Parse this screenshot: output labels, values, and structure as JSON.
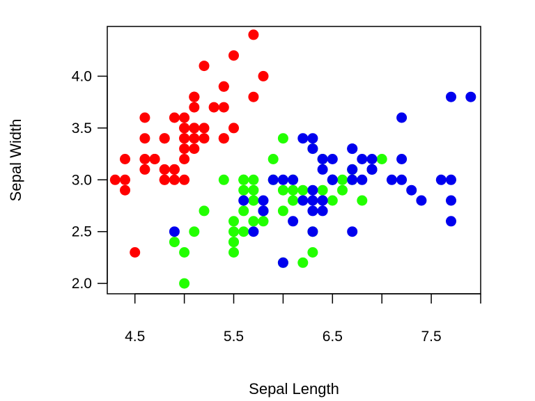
{
  "chart_data": {
    "type": "scatter",
    "title": "",
    "xlabel": "Sepal Length",
    "ylabel": "Sepal Width",
    "xlim": [
      4.22,
      8.0
    ],
    "ylim": [
      1.9,
      4.48
    ],
    "x_ticks": [
      4.5,
      5.5,
      6.5,
      7.5
    ],
    "x_tick_labels": [
      "4.5",
      "5.5",
      "6.5",
      "7.5"
    ],
    "x_minor_ticks": [
      5.0,
      6.0,
      7.0,
      8.0
    ],
    "y_ticks": [
      2.0,
      2.5,
      3.0,
      3.5,
      4.0
    ],
    "y_tick_labels": [
      "2.0",
      "2.5",
      "3.0",
      "3.5",
      "4.0"
    ],
    "grid": false,
    "legend": "none",
    "series": [
      {
        "color": "#ff0000",
        "points": [
          [
            5.1,
            3.5
          ],
          [
            4.9,
            3.0
          ],
          [
            4.7,
            3.2
          ],
          [
            4.6,
            3.1
          ],
          [
            5.0,
            3.6
          ],
          [
            5.4,
            3.9
          ],
          [
            4.6,
            3.4
          ],
          [
            5.0,
            3.4
          ],
          [
            4.4,
            2.9
          ],
          [
            4.9,
            3.1
          ],
          [
            5.4,
            3.7
          ],
          [
            4.8,
            3.4
          ],
          [
            4.8,
            3.0
          ],
          [
            4.3,
            3.0
          ],
          [
            5.8,
            4.0
          ],
          [
            5.7,
            4.4
          ],
          [
            5.4,
            3.9
          ],
          [
            5.1,
            3.5
          ],
          [
            5.7,
            3.8
          ],
          [
            5.1,
            3.8
          ],
          [
            5.4,
            3.4
          ],
          [
            5.1,
            3.7
          ],
          [
            4.6,
            3.6
          ],
          [
            5.1,
            3.3
          ],
          [
            4.8,
            3.4
          ],
          [
            5.0,
            3.0
          ],
          [
            5.0,
            3.4
          ],
          [
            5.2,
            3.5
          ],
          [
            5.2,
            3.4
          ],
          [
            4.7,
            3.2
          ],
          [
            4.8,
            3.1
          ],
          [
            5.4,
            3.4
          ],
          [
            5.2,
            4.1
          ],
          [
            5.5,
            4.2
          ],
          [
            4.9,
            3.1
          ],
          [
            5.0,
            3.2
          ],
          [
            5.5,
            3.5
          ],
          [
            4.9,
            3.6
          ],
          [
            4.4,
            3.0
          ],
          [
            5.1,
            3.4
          ],
          [
            5.0,
            3.5
          ],
          [
            4.5,
            2.3
          ],
          [
            4.4,
            3.2
          ],
          [
            5.0,
            3.5
          ],
          [
            5.1,
            3.8
          ],
          [
            4.8,
            3.0
          ],
          [
            5.1,
            3.8
          ],
          [
            4.6,
            3.2
          ],
          [
            5.3,
            3.7
          ],
          [
            5.0,
            3.3
          ]
        ]
      },
      {
        "color": "#22ff00",
        "points": [
          [
            7.0,
            3.2
          ],
          [
            6.4,
            3.2
          ],
          [
            6.9,
            3.1
          ],
          [
            5.5,
            2.3
          ],
          [
            6.5,
            2.8
          ],
          [
            5.7,
            2.8
          ],
          [
            6.3,
            3.3
          ],
          [
            4.9,
            2.4
          ],
          [
            6.6,
            2.9
          ],
          [
            5.2,
            2.7
          ],
          [
            5.0,
            2.0
          ],
          [
            5.9,
            3.0
          ],
          [
            6.0,
            2.2
          ],
          [
            6.1,
            2.9
          ],
          [
            5.6,
            2.9
          ],
          [
            6.7,
            3.1
          ],
          [
            5.6,
            3.0
          ],
          [
            5.8,
            2.7
          ],
          [
            6.2,
            2.2
          ],
          [
            5.6,
            2.5
          ],
          [
            5.9,
            3.2
          ],
          [
            6.1,
            2.8
          ],
          [
            6.3,
            2.5
          ],
          [
            6.1,
            2.8
          ],
          [
            6.4,
            2.9
          ],
          [
            6.6,
            3.0
          ],
          [
            6.8,
            2.8
          ],
          [
            6.7,
            3.0
          ],
          [
            6.0,
            2.9
          ],
          [
            5.7,
            2.6
          ],
          [
            5.5,
            2.4
          ],
          [
            5.5,
            2.4
          ],
          [
            5.8,
            2.7
          ],
          [
            6.0,
            2.7
          ],
          [
            5.4,
            3.0
          ],
          [
            6.0,
            3.4
          ],
          [
            6.7,
            3.1
          ],
          [
            6.3,
            2.3
          ],
          [
            5.6,
            3.0
          ],
          [
            5.5,
            2.5
          ],
          [
            5.5,
            2.6
          ],
          [
            6.1,
            3.0
          ],
          [
            5.8,
            2.6
          ],
          [
            5.0,
            2.3
          ],
          [
            5.6,
            2.7
          ],
          [
            5.7,
            3.0
          ],
          [
            5.7,
            2.9
          ],
          [
            6.2,
            2.9
          ],
          [
            5.1,
            2.5
          ],
          [
            5.7,
            2.8
          ]
        ]
      },
      {
        "color": "#0000ee",
        "points": [
          [
            6.3,
            3.3
          ],
          [
            5.8,
            2.7
          ],
          [
            7.1,
            3.0
          ],
          [
            6.3,
            2.9
          ],
          [
            6.5,
            3.0
          ],
          [
            7.6,
            3.0
          ],
          [
            4.9,
            2.5
          ],
          [
            7.3,
            2.9
          ],
          [
            6.7,
            2.5
          ],
          [
            7.2,
            3.6
          ],
          [
            6.5,
            3.2
          ],
          [
            6.4,
            2.7
          ],
          [
            6.8,
            3.0
          ],
          [
            5.7,
            2.5
          ],
          [
            5.8,
            2.8
          ],
          [
            6.4,
            3.2
          ],
          [
            6.5,
            3.0
          ],
          [
            7.7,
            3.8
          ],
          [
            7.7,
            2.6
          ],
          [
            6.0,
            2.2
          ],
          [
            6.9,
            3.2
          ],
          [
            5.6,
            2.8
          ],
          [
            7.7,
            2.8
          ],
          [
            6.3,
            2.7
          ],
          [
            6.7,
            3.3
          ],
          [
            7.2,
            3.2
          ],
          [
            6.2,
            2.8
          ],
          [
            6.1,
            3.0
          ],
          [
            6.4,
            2.8
          ],
          [
            7.2,
            3.0
          ],
          [
            7.4,
            2.8
          ],
          [
            7.9,
            3.8
          ],
          [
            6.4,
            2.8
          ],
          [
            6.3,
            2.8
          ],
          [
            6.1,
            2.6
          ],
          [
            7.7,
            3.0
          ],
          [
            6.3,
            3.4
          ],
          [
            6.4,
            3.1
          ],
          [
            6.0,
            3.0
          ],
          [
            6.9,
            3.1
          ],
          [
            6.7,
            3.1
          ],
          [
            6.9,
            3.1
          ],
          [
            5.8,
            2.7
          ],
          [
            6.8,
            3.2
          ],
          [
            6.7,
            3.3
          ],
          [
            6.7,
            3.0
          ],
          [
            6.3,
            2.5
          ],
          [
            6.5,
            3.0
          ],
          [
            6.2,
            3.4
          ],
          [
            5.9,
            3.0
          ]
        ]
      }
    ]
  }
}
